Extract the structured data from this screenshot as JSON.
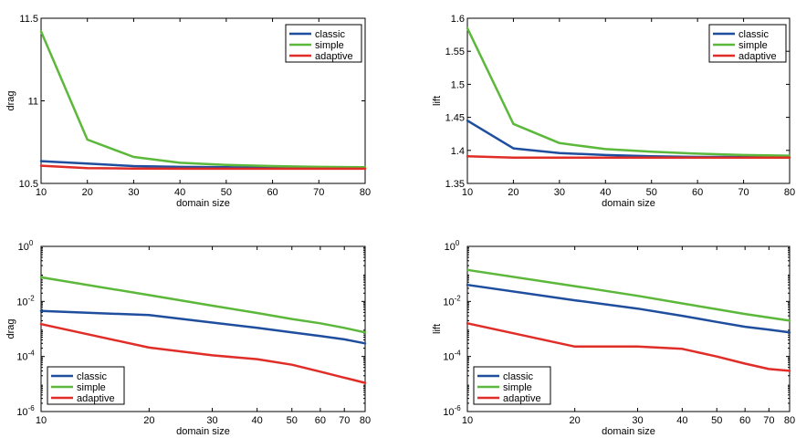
{
  "chart_data": [
    {
      "type": "line",
      "xscale": "linear",
      "yscale": "linear",
      "xlabel": "domain size",
      "ylabel": "drag",
      "xlim": [
        10,
        80
      ],
      "ylim": [
        10.5,
        11.5
      ],
      "xticks": [
        10,
        20,
        30,
        40,
        50,
        60,
        70,
        80
      ],
      "xtick_labels": [
        "10",
        "20",
        "30",
        "40",
        "50",
        "60",
        "70",
        "80"
      ],
      "yticks": [
        10.5,
        11,
        11.5
      ],
      "ytick_labels": [
        "10.5",
        "11",
        "11.5"
      ],
      "x": [
        10,
        20,
        30,
        40,
        50,
        60,
        70,
        80
      ],
      "legend": "top-right",
      "series": [
        {
          "name": "classic",
          "color": "#1f4e9e",
          "values": [
            10.635,
            10.62,
            10.605,
            10.6,
            10.598,
            10.596,
            10.595,
            10.594
          ]
        },
        {
          "name": "simple",
          "color": "#5cb83a",
          "values": [
            11.42,
            10.765,
            10.66,
            10.625,
            10.612,
            10.605,
            10.6,
            10.598
          ]
        },
        {
          "name": "adaptive",
          "color": "#e02d27",
          "values": [
            10.607,
            10.592,
            10.59,
            10.589,
            10.589,
            10.589,
            10.589,
            10.589
          ]
        }
      ]
    },
    {
      "type": "line",
      "xscale": "linear",
      "yscale": "linear",
      "xlabel": "domain size",
      "ylabel": "lift",
      "xlim": [
        10,
        80
      ],
      "ylim": [
        1.35,
        1.6
      ],
      "xticks": [
        10,
        20,
        30,
        40,
        50,
        60,
        70,
        80
      ],
      "xtick_labels": [
        "10",
        "20",
        "30",
        "40",
        "50",
        "60",
        "70",
        "80"
      ],
      "yticks": [
        1.35,
        1.4,
        1.45,
        1.5,
        1.55,
        1.6
      ],
      "ytick_labels": [
        "1.35",
        "1.4",
        "1.45",
        "1.5",
        "1.55",
        "1.6"
      ],
      "x": [
        10,
        20,
        30,
        40,
        50,
        60,
        70,
        80
      ],
      "legend": "top-right",
      "series": [
        {
          "name": "classic",
          "color": "#1f4e9e",
          "values": [
            1.445,
            1.403,
            1.396,
            1.393,
            1.391,
            1.39,
            1.39,
            1.389
          ]
        },
        {
          "name": "simple",
          "color": "#5cb83a",
          "values": [
            1.585,
            1.44,
            1.411,
            1.402,
            1.398,
            1.395,
            1.393,
            1.392
          ]
        },
        {
          "name": "adaptive",
          "color": "#e02d27",
          "values": [
            1.391,
            1.389,
            1.389,
            1.389,
            1.389,
            1.389,
            1.389,
            1.389
          ]
        }
      ]
    },
    {
      "type": "line",
      "xscale": "log",
      "yscale": "log",
      "xlabel": "domain size",
      "ylabel": "drag",
      "xlim": [
        10,
        80
      ],
      "ylim": [
        1e-06,
        1
      ],
      "xticks": [
        10,
        20,
        30,
        40,
        50,
        60,
        70,
        80
      ],
      "xtick_labels": [
        "10",
        "20",
        "30",
        "40",
        "50",
        "60",
        "70",
        "80"
      ],
      "yticks": [
        1e-06,
        0.0001,
        0.01,
        1
      ],
      "ytick_labels": [
        {
          "base": "10",
          "exp": "-6"
        },
        {
          "base": "10",
          "exp": "-4"
        },
        {
          "base": "10",
          "exp": "-2"
        },
        {
          "base": "10",
          "exp": "0"
        }
      ],
      "x": [
        10,
        20,
        30,
        40,
        50,
        60,
        70,
        80
      ],
      "legend": "bottom-left",
      "series": [
        {
          "name": "classic",
          "color": "#1f4e9e",
          "values": [
            0.0045,
            0.0032,
            0.0017,
            0.0011,
            0.00075,
            0.00055,
            0.00042,
            0.0003
          ]
        },
        {
          "name": "simple",
          "color": "#5cb83a",
          "values": [
            0.075,
            0.017,
            0.007,
            0.0038,
            0.0023,
            0.0016,
            0.0011,
            0.00075
          ]
        },
        {
          "name": "adaptive",
          "color": "#e02d27",
          "values": [
            0.0015,
            0.00021,
            0.00011,
            8e-05,
            5e-05,
            2.8e-05,
            1.7e-05,
            1.1e-05
          ]
        }
      ]
    },
    {
      "type": "line",
      "xscale": "log",
      "yscale": "log",
      "xlabel": "domain size",
      "ylabel": "lift",
      "xlim": [
        10,
        80
      ],
      "ylim": [
        1e-06,
        1
      ],
      "xticks": [
        10,
        20,
        30,
        40,
        50,
        60,
        70,
        80
      ],
      "xtick_labels": [
        "10",
        "20",
        "30",
        "40",
        "50",
        "60",
        "70",
        "80"
      ],
      "yticks": [
        1e-06,
        0.0001,
        0.01,
        1
      ],
      "ytick_labels": [
        {
          "base": "10",
          "exp": "-6"
        },
        {
          "base": "10",
          "exp": "-4"
        },
        {
          "base": "10",
          "exp": "-2"
        },
        {
          "base": "10",
          "exp": "0"
        }
      ],
      "x": [
        10,
        20,
        30,
        40,
        50,
        60,
        70,
        80
      ],
      "legend": "bottom-left",
      "series": [
        {
          "name": "classic",
          "color": "#1f4e9e",
          "values": [
            0.04,
            0.011,
            0.0055,
            0.003,
            0.0018,
            0.0012,
            0.00095,
            0.00075
          ]
        },
        {
          "name": "simple",
          "color": "#5cb83a",
          "values": [
            0.14,
            0.036,
            0.016,
            0.0085,
            0.0052,
            0.0035,
            0.0026,
            0.002
          ]
        },
        {
          "name": "adaptive",
          "color": "#e02d27",
          "values": [
            0.0016,
            0.00023,
            0.00023,
            0.00019,
            0.0001,
            5.5e-05,
            3.5e-05,
            3e-05
          ]
        }
      ]
    }
  ]
}
